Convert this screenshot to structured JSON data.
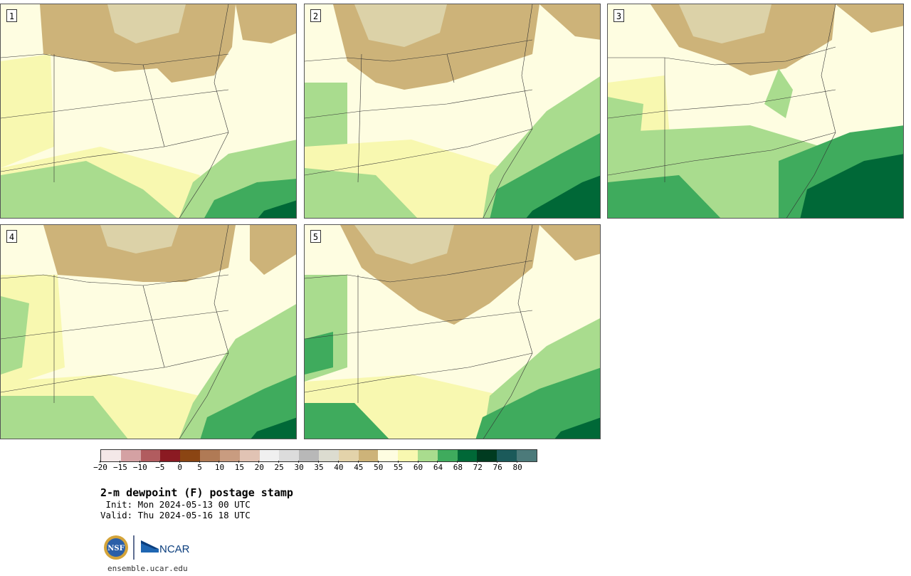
{
  "panels": [
    {
      "label": "1"
    },
    {
      "label": "2"
    },
    {
      "label": "3"
    },
    {
      "label": "4"
    },
    {
      "label": "5"
    }
  ],
  "legend": {
    "colors": [
      "#f4e8e8",
      "#d4a1a3",
      "#b15c5f",
      "#8b1a22",
      "#8b4513",
      "#b07a55",
      "#c99c80",
      "#e1c3b4",
      "#f0f0f0",
      "#dcdcdc",
      "#b8b8b8",
      "#dcdcd0",
      "#e3d3aa",
      "#cdb379",
      "#fefde1",
      "#f8f8b0",
      "#a9dc8e",
      "#3fab5d",
      "#006837",
      "#003b20",
      "#1b5a5a",
      "#4c7a7a"
    ],
    "ticks": [
      "−20",
      "−15",
      "−10",
      "−5",
      "0",
      "5",
      "10",
      "15",
      "20",
      "25",
      "30",
      "35",
      "40",
      "45",
      "50",
      "55",
      "60",
      "64",
      "68",
      "72",
      "76",
      "80"
    ]
  },
  "title": "2-m dewpoint (F) postage stamp",
  "init": " Init: Mon 2024-05-13 00 UTC",
  "valid": "Valid: Thu 2024-05-16 18 UTC",
  "logos": {
    "nsf": "NSF",
    "ncar": "NCAR"
  },
  "url": "ensemble.ucar.edu"
}
